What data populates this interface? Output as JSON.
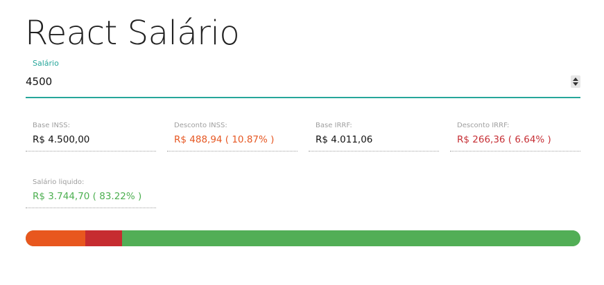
{
  "app": {
    "title": "React Salário"
  },
  "salary_field": {
    "label": "Salário",
    "value": "4500"
  },
  "results": {
    "base_inss": {
      "label": "Base INSS:",
      "value": "R$ 4.500,00"
    },
    "desconto_inss": {
      "label": "Desconto INSS:",
      "value": "R$ 488,94 ( 10.87% )"
    },
    "base_irrf": {
      "label": "Base IRRF:",
      "value": "R$ 4.011,06"
    },
    "desconto_irrf": {
      "label": "Desconto IRRF:",
      "value": "R$ 266,36 ( 6.64% )"
    },
    "salario_liquido": {
      "label": "Salário liquido:",
      "value": "R$ 3.744,70 ( 83.22% )"
    }
  },
  "proportion_bar": {
    "segments": [
      {
        "name": "desconto-inss",
        "percent": 10.87,
        "color": "#e8571e"
      },
      {
        "name": "desconto-irrf",
        "percent": 6.64,
        "color": "#c62c30"
      },
      {
        "name": "salario-liquido",
        "percent": 83.22,
        "color": "#52ae56"
      }
    ]
  },
  "colors": {
    "accent": "#26a69a",
    "inss": "#e65722",
    "irrf": "#c62f35",
    "liquido": "#4caf50"
  },
  "icons": {
    "spinner": "number-spinner-icon"
  }
}
